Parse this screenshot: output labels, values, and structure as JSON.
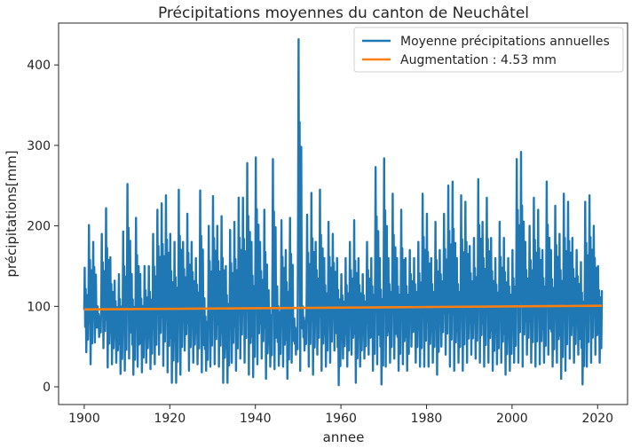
{
  "chart_data": {
    "type": "line",
    "title": "Précipitations moyennes du canton de Neuchâtel",
    "xlabel": "annee",
    "ylabel": "précipitations[mm]",
    "xlim": [
      1894,
      2027
    ],
    "ylim": [
      -22,
      452
    ],
    "xticks": [
      "1900",
      "1920",
      "1940",
      "1960",
      "1980",
      "2000",
      "2020"
    ],
    "xtick_values": [
      1900,
      1920,
      1940,
      1960,
      1980,
      2000,
      2020
    ],
    "yticks": [
      "0",
      "100",
      "200",
      "300",
      "400"
    ],
    "ytick_values": [
      0,
      100,
      200,
      300,
      400
    ],
    "grid": false,
    "legend_position": "top-right",
    "series": [
      {
        "name": "Moyenne précipitations annuelles",
        "color": "#1f77b4",
        "style": "monthly series, about 12 points per year, 1900–2021",
        "x_start": 1900,
        "x_end": 2021,
        "annual_peaks": [
          148,
          201,
          180,
          100,
          190,
          222,
          161,
          132,
          140,
          193,
          252,
          140,
          210,
          140,
          150,
          150,
          190,
          220,
          228,
          238,
          190,
          180,
          245,
          180,
          215,
          180,
          160,
          244,
          110,
          200,
          237,
          200,
          212,
          150,
          195,
          205,
          235,
          235,
          278,
          180,
          285,
          180,
          220,
          120,
          283,
          125,
          207,
          170,
          210,
          85,
          432,
          100,
          214,
          241,
          180,
          245,
          160,
          205,
          190,
          160,
          140,
          160,
          180,
          207,
          160,
          140,
          180,
          160,
          273,
          160,
          284,
          160,
          240,
          160,
          220,
          160,
          170,
          160,
          180,
          240,
          215,
          160,
          205,
          170,
          215,
          250,
          255,
          160,
          238,
          230,
          175,
          185,
          258,
          205,
          235,
          185,
          160,
          205,
          185,
          160,
          170,
          283,
          292,
          180,
          200,
          235,
          220,
          170,
          255,
          170,
          225,
          190,
          240,
          230,
          185,
          170,
          155,
          230,
          238,
          200,
          150,
          215
        ],
        "annual_troughs": [
          43,
          28,
          55,
          62,
          48,
          24,
          28,
          30,
          16,
          20,
          35,
          15,
          25,
          18,
          30,
          22,
          28,
          40,
          26,
          18,
          5,
          5,
          15,
          45,
          20,
          30,
          28,
          18,
          20,
          25,
          28,
          25,
          5,
          5,
          30,
          20,
          35,
          30,
          15,
          12,
          28,
          35,
          10,
          25,
          22,
          26,
          25,
          10,
          30,
          40,
          20,
          45,
          25,
          15,
          40,
          20,
          25,
          30,
          45,
          2,
          35,
          25,
          40,
          5,
          25,
          35,
          40,
          20,
          28,
          3,
          25,
          30,
          35,
          20,
          28,
          20,
          50,
          30,
          25,
          25,
          25,
          30,
          15,
          50,
          40,
          25,
          20,
          30,
          20,
          30,
          40,
          35,
          30,
          25,
          30,
          20,
          28,
          30,
          15,
          20,
          30,
          30,
          25,
          40,
          30,
          25,
          28,
          30,
          40,
          25,
          30,
          10,
          20,
          35,
          30,
          40,
          3,
          25,
          30,
          40,
          30,
          25
        ]
      },
      {
        "name": "Augmentation : 4.53 mm",
        "color": "#ff7f0e",
        "style": "linear trend",
        "x": [
          1900,
          2021
        ],
        "y": [
          96.2,
          100.7
        ]
      }
    ]
  }
}
